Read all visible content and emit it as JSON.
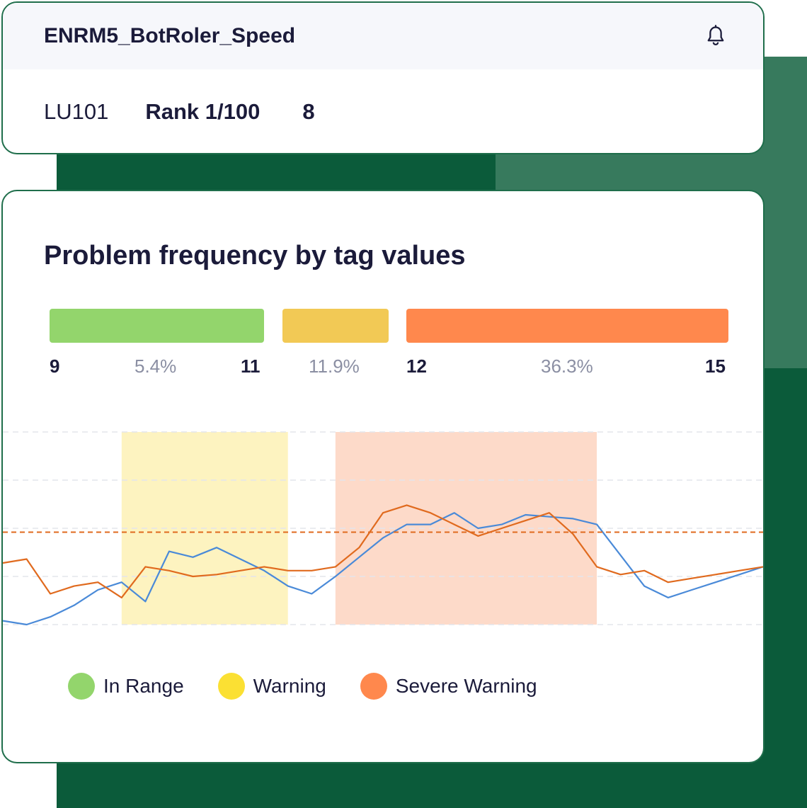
{
  "header": {
    "title": "ENRM5_BotRoler_Speed",
    "bell_icon": "bell-icon"
  },
  "meta": {
    "id": "LU101",
    "rank_label": "Rank",
    "rank_value": "1/100",
    "count": "8"
  },
  "chart": {
    "title": "Problem frequency by tag values",
    "bands": [
      {
        "name": "In Range",
        "from": "9",
        "to": "11",
        "percent": "5.4%",
        "color": "#93d56c"
      },
      {
        "name": "Warning",
        "percent": "11.9%",
        "color": "#f2c955"
      },
      {
        "name": "Severe Warning",
        "from": "12",
        "to": "15",
        "percent": "36.3%",
        "color": "#ff884d"
      }
    ],
    "legend": [
      {
        "label": "In Range",
        "color": "#93d56c"
      },
      {
        "label": "Warning",
        "color": "#fbe033"
      },
      {
        "label": "Severe Warning",
        "color": "#ff884d"
      }
    ]
  },
  "chart_data": {
    "type": "line",
    "title": "Problem frequency by tag values",
    "ylim": [
      0,
      100
    ],
    "x": [
      0,
      1,
      2,
      3,
      4,
      5,
      6,
      7,
      8,
      9,
      10,
      11,
      12,
      13,
      14,
      15,
      16,
      17,
      18,
      19,
      20,
      21,
      22,
      23,
      24,
      25,
      26,
      27,
      28,
      29,
      30,
      31,
      32
    ],
    "series": [
      {
        "color": "#4a8ad8",
        "values": [
          2,
          0,
          4,
          10,
          18,
          22,
          12,
          38,
          35,
          40,
          34,
          28,
          20,
          16,
          25,
          35,
          45,
          52,
          52,
          58,
          50,
          52,
          57,
          56,
          55,
          52,
          36,
          20,
          14,
          18,
          22,
          26,
          30
        ]
      },
      {
        "color": "#e06a1e",
        "values": [
          32,
          34,
          16,
          20,
          22,
          14,
          30,
          28,
          25,
          26,
          28,
          30,
          28,
          28,
          30,
          40,
          58,
          62,
          58,
          52,
          46,
          50,
          54,
          58,
          47,
          30,
          26,
          28,
          22,
          24,
          26,
          28,
          30
        ]
      }
    ],
    "threshold": {
      "value": 48,
      "color": "#e06a1e",
      "style": "dashed"
    },
    "regions": [
      {
        "label": "Warning",
        "color": "#fdf3c0",
        "from": 5,
        "to": 12
      },
      {
        "label": "Severe Warning",
        "color": "#fddac9",
        "from": 14,
        "to": 25
      }
    ],
    "grid": true
  }
}
